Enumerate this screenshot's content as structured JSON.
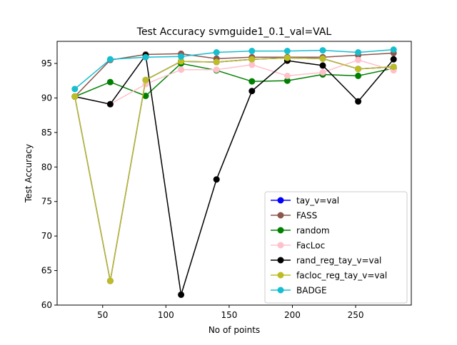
{
  "chart_data": {
    "type": "line",
    "title": "Test Accuracy svmguide1_0.1_val=VAL",
    "xlabel": "No of points",
    "ylabel": "Test Accuracy",
    "xlim": [
      14,
      294
    ],
    "ylim": [
      60,
      98.2
    ],
    "xticks": [
      50,
      100,
      150,
      200,
      250
    ],
    "yticks": [
      60,
      65,
      70,
      75,
      80,
      85,
      90,
      95
    ],
    "grid": false,
    "legend_position": "lower-right",
    "x": [
      28,
      56,
      84,
      112,
      140,
      168,
      196,
      224,
      252,
      280
    ],
    "series": [
      {
        "name": "tay_v=val",
        "color": "#0000ff",
        "values": [
          90.2,
          63.5,
          92.6,
          95.3,
          95.2,
          95.6,
          95.8,
          95.7,
          94.2,
          94.5
        ]
      },
      {
        "name": "FASS",
        "color": "#8c564b",
        "values": [
          90.2,
          95.5,
          96.3,
          96.4,
          95.7,
          95.9,
          95.9,
          95.9,
          96.2,
          96.5
        ]
      },
      {
        "name": "random",
        "color": "#008000",
        "values": [
          90.2,
          92.3,
          90.3,
          95.0,
          94.0,
          92.4,
          92.5,
          93.4,
          93.2,
          94.3
        ]
      },
      {
        "name": "FacLoc",
        "color": "#ffc0cb",
        "values": [
          90.2,
          89.1,
          92.0,
          94.1,
          94.1,
          94.8,
          93.2,
          93.7,
          95.5,
          94.0
        ]
      },
      {
        "name": "rand_reg_tay_v=val",
        "color": "#000000",
        "values": [
          90.2,
          89.1,
          96.2,
          61.5,
          78.2,
          91.0,
          95.4,
          94.7,
          89.5,
          95.6
        ]
      },
      {
        "name": "facloc_reg_tay_v=val",
        "color": "#bcbd22",
        "values": [
          90.2,
          63.5,
          92.6,
          95.3,
          95.2,
          95.6,
          95.8,
          95.7,
          94.2,
          94.5
        ]
      },
      {
        "name": "BADGE",
        "color": "#17becf",
        "values": [
          91.3,
          95.6,
          95.9,
          96.0,
          96.6,
          96.8,
          96.8,
          96.9,
          96.6,
          97.0
        ]
      }
    ]
  }
}
